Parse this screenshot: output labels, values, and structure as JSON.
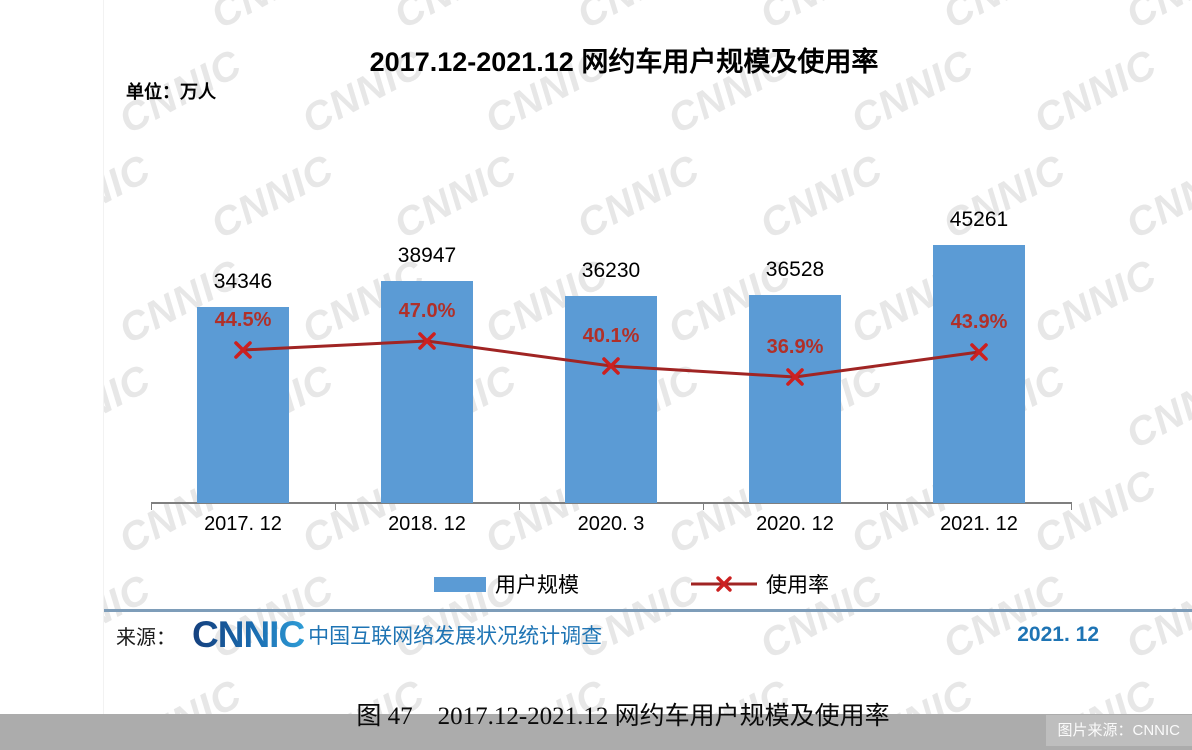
{
  "title": "2017.12-2021.12 网约车用户规模及使用率",
  "unit_label": "单位：万人",
  "chart_data": {
    "type": "bar",
    "subtype": "bar+line combo",
    "title": "2017.12-2021.12 网约车用户规模及使用率",
    "unit_label": "单位：万人",
    "categories": [
      "2017. 12",
      "2018. 12",
      "2020. 3",
      "2020. 12",
      "2021. 12"
    ],
    "series": [
      {
        "name": "用户规模",
        "type": "bar",
        "unit": "万人",
        "values": [
          34346,
          38947,
          36230,
          36528,
          45261
        ],
        "color": "#5b9bd5",
        "value_labels": [
          "34346",
          "38947",
          "36230",
          "36528",
          "45261"
        ]
      },
      {
        "name": "使用率",
        "type": "line",
        "unit": "%",
        "values": [
          44.5,
          47.0,
          40.1,
          36.9,
          43.9
        ],
        "color": "#a02423",
        "marker": "x",
        "marker_color": "#cc2020",
        "label_color": "#b03029",
        "value_labels": [
          "44.5%",
          "47.0%",
          "40.1%",
          "36.9%",
          "43.9%"
        ]
      }
    ],
    "legend_position": "bottom",
    "grid": false,
    "y_axis_shown": false,
    "value_labels_shown": true
  },
  "legend": {
    "bar_label": "用户规模",
    "line_label": "使用率"
  },
  "footer": {
    "source_label": "来源：",
    "logo_text": "CNNIC",
    "survey_text": "中国互联网络发展状况统计调查",
    "date": "2021. 12"
  },
  "caption": "图 47　2017.12-2021.12 网约车用户规模及使用率",
  "watermark_text": "CNNIC",
  "image_credit": "图片来源：CNNIC",
  "colors": {
    "bar": "#5b9bd5",
    "line": "#a02423",
    "marker": "#cc2020",
    "rate_label": "#b03029",
    "footer_divider": "#7e9db9",
    "footer_blue": "#1e74b4",
    "bottom_band": "#acacac",
    "credit_box": "#bebebe"
  }
}
